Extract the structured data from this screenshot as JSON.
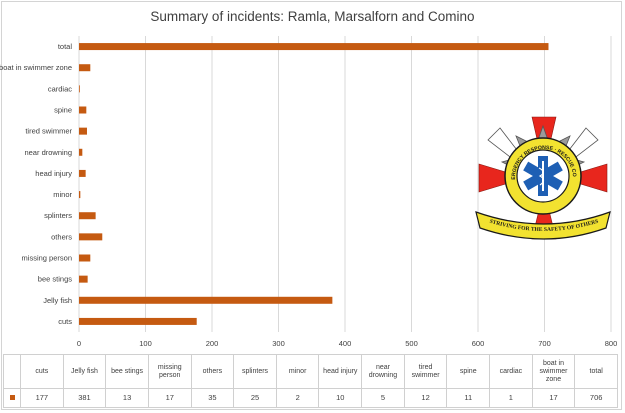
{
  "colors": {
    "bar": "#c55a11",
    "grid": "#d9d9d9",
    "text": "#404040"
  },
  "chart_data": {
    "type": "bar",
    "orientation": "horizontal",
    "title": "Summary of incidents:  Ramla, Marsalforn and Comino",
    "categories": [
      "cuts",
      "Jelly fish",
      "bee stings",
      "missing person",
      "others",
      "splinters",
      "minor",
      "head injury",
      "near drowning",
      "tired swimmer",
      "spine",
      "cardiac",
      "boat in swimmer zone",
      "total"
    ],
    "values": [
      177,
      381,
      13,
      17,
      35,
      25,
      2,
      10,
      5,
      12,
      11,
      1,
      17,
      706
    ],
    "xlim": [
      0,
      800
    ],
    "xticks": [
      0,
      100,
      200,
      300,
      400,
      500,
      600,
      700,
      800
    ],
    "grid": true,
    "legend": "none",
    "data_table": true
  },
  "logo": {
    "ring_text": "EMERGENCY RESPONSE · RESCUE CORPS",
    "banner_text": "STRIVING FOR THE SAFETY OF OTHERS",
    "colors": {
      "cross": "#e8261d",
      "star": "#8c8c8c",
      "ring": "#f2e230",
      "ring_border": "#1a1a1a",
      "star_of_life": "#1e5fb4",
      "banner": "#f2e230"
    }
  }
}
